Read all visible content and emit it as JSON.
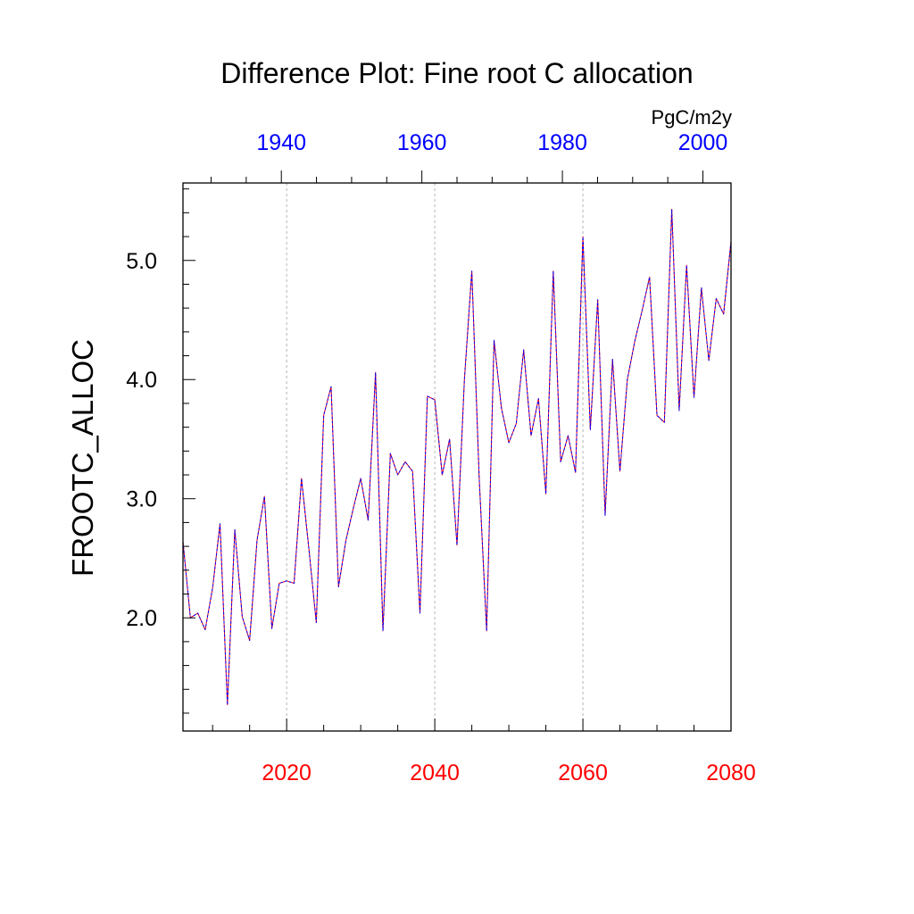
{
  "chart_data": {
    "type": "line",
    "title": "Difference Plot: Fine root C allocation",
    "units": "PgC/m2y",
    "ylabel": "FROOTC_ALLOC",
    "ylim": [
      1.05,
      5.65
    ],
    "yticks": [
      2.0,
      3.0,
      4.0,
      5.0
    ],
    "ytick_labels": [
      "2.0",
      "3.0",
      "4.0",
      "5.0"
    ],
    "ygrid": false,
    "x_bottom": {
      "range": [
        2006,
        2080
      ],
      "ticks": [
        2020,
        2040,
        2060,
        2080
      ],
      "tick_labels": [
        "2020",
        "2040",
        "2060",
        "2080"
      ],
      "label_color": "#ff0000",
      "grid": true
    },
    "x_top": {
      "range": [
        1926,
        2004
      ],
      "ticks": [
        1940,
        1960,
        1980,
        2000
      ],
      "tick_labels": [
        "1940",
        "1960",
        "1980",
        "2000"
      ],
      "label_color": "#0000ff"
    },
    "series": [
      {
        "color": "#ff0000",
        "style": "solid",
        "x": [
          2006,
          2007,
          2008,
          2009,
          2010,
          2011,
          2012,
          2013,
          2014,
          2015,
          2016,
          2017,
          2018,
          2019,
          2020,
          2021,
          2022,
          2023,
          2024,
          2025,
          2026,
          2027,
          2028,
          2029,
          2030,
          2031,
          2032,
          2033,
          2034,
          2035,
          2036,
          2037,
          2038,
          2039,
          2040,
          2041,
          2042,
          2043,
          2044,
          2045,
          2046,
          2047,
          2048,
          2049,
          2050,
          2051,
          2052,
          2053,
          2054,
          2055,
          2056,
          2057,
          2058,
          2059,
          2060,
          2061,
          2062,
          2063,
          2064,
          2065,
          2066,
          2067,
          2068,
          2069,
          2070,
          2071,
          2072,
          2073,
          2074,
          2075,
          2076,
          2077,
          2078,
          2079,
          2080
        ],
        "y": [
          2.64,
          2.0,
          2.04,
          1.9,
          2.25,
          2.79,
          1.27,
          2.74,
          2.01,
          1.81,
          2.65,
          3.02,
          1.91,
          2.29,
          2.31,
          2.29,
          3.17,
          2.58,
          1.96,
          3.7,
          3.94,
          2.26,
          2.65,
          2.92,
          3.17,
          2.82,
          4.06,
          1.89,
          3.38,
          3.2,
          3.31,
          3.23,
          2.04,
          3.86,
          3.83,
          3.2,
          3.5,
          2.61,
          4.0,
          4.91,
          3.17,
          1.89,
          4.33,
          3.76,
          3.47,
          3.63,
          4.25,
          3.53,
          3.84,
          3.04,
          4.91,
          3.31,
          3.53,
          3.22,
          5.2,
          3.58,
          4.67,
          2.86,
          4.17,
          3.23,
          4.0,
          4.32,
          4.58,
          4.86,
          3.7,
          3.64,
          5.43,
          3.74,
          4.96,
          3.85,
          4.77,
          4.16,
          4.68,
          4.55,
          5.16
        ]
      },
      {
        "color": "#0000ff",
        "style": "dashed",
        "x": [
          2006,
          2007,
          2008,
          2009,
          2010,
          2011,
          2012,
          2013,
          2014,
          2015,
          2016,
          2017,
          2018,
          2019,
          2020,
          2021,
          2022,
          2023,
          2024,
          2025,
          2026,
          2027,
          2028,
          2029,
          2030,
          2031,
          2032,
          2033,
          2034,
          2035,
          2036,
          2037,
          2038,
          2039,
          2040,
          2041,
          2042,
          2043,
          2044,
          2045,
          2046,
          2047,
          2048,
          2049,
          2050,
          2051,
          2052,
          2053,
          2054,
          2055,
          2056,
          2057,
          2058,
          2059,
          2060,
          2061,
          2062,
          2063,
          2064,
          2065,
          2066,
          2067,
          2068,
          2069,
          2070,
          2071,
          2072,
          2073,
          2074,
          2075,
          2076,
          2077,
          2078,
          2079,
          2080
        ],
        "y": [
          2.64,
          2.0,
          2.04,
          1.9,
          2.25,
          2.79,
          1.27,
          2.74,
          2.01,
          1.81,
          2.65,
          3.02,
          1.91,
          2.29,
          2.31,
          2.29,
          3.17,
          2.58,
          1.96,
          3.7,
          3.94,
          2.26,
          2.65,
          2.92,
          3.17,
          2.82,
          4.06,
          1.89,
          3.38,
          3.2,
          3.31,
          3.23,
          2.04,
          3.86,
          3.83,
          3.2,
          3.5,
          2.61,
          4.0,
          4.91,
          3.17,
          1.89,
          4.33,
          3.76,
          3.47,
          3.63,
          4.25,
          3.53,
          3.84,
          3.04,
          4.91,
          3.31,
          3.53,
          3.22,
          5.2,
          3.58,
          4.67,
          2.86,
          4.17,
          3.23,
          4.0,
          4.32,
          4.58,
          4.86,
          3.7,
          3.64,
          5.43,
          3.74,
          4.96,
          3.85,
          4.77,
          4.16,
          4.68,
          4.55,
          5.16
        ]
      }
    ]
  },
  "colors": {
    "axis": "#000000",
    "grid": "#b4b4b4",
    "bottom_labels": "#ff0000",
    "top_labels": "#0000ff"
  }
}
